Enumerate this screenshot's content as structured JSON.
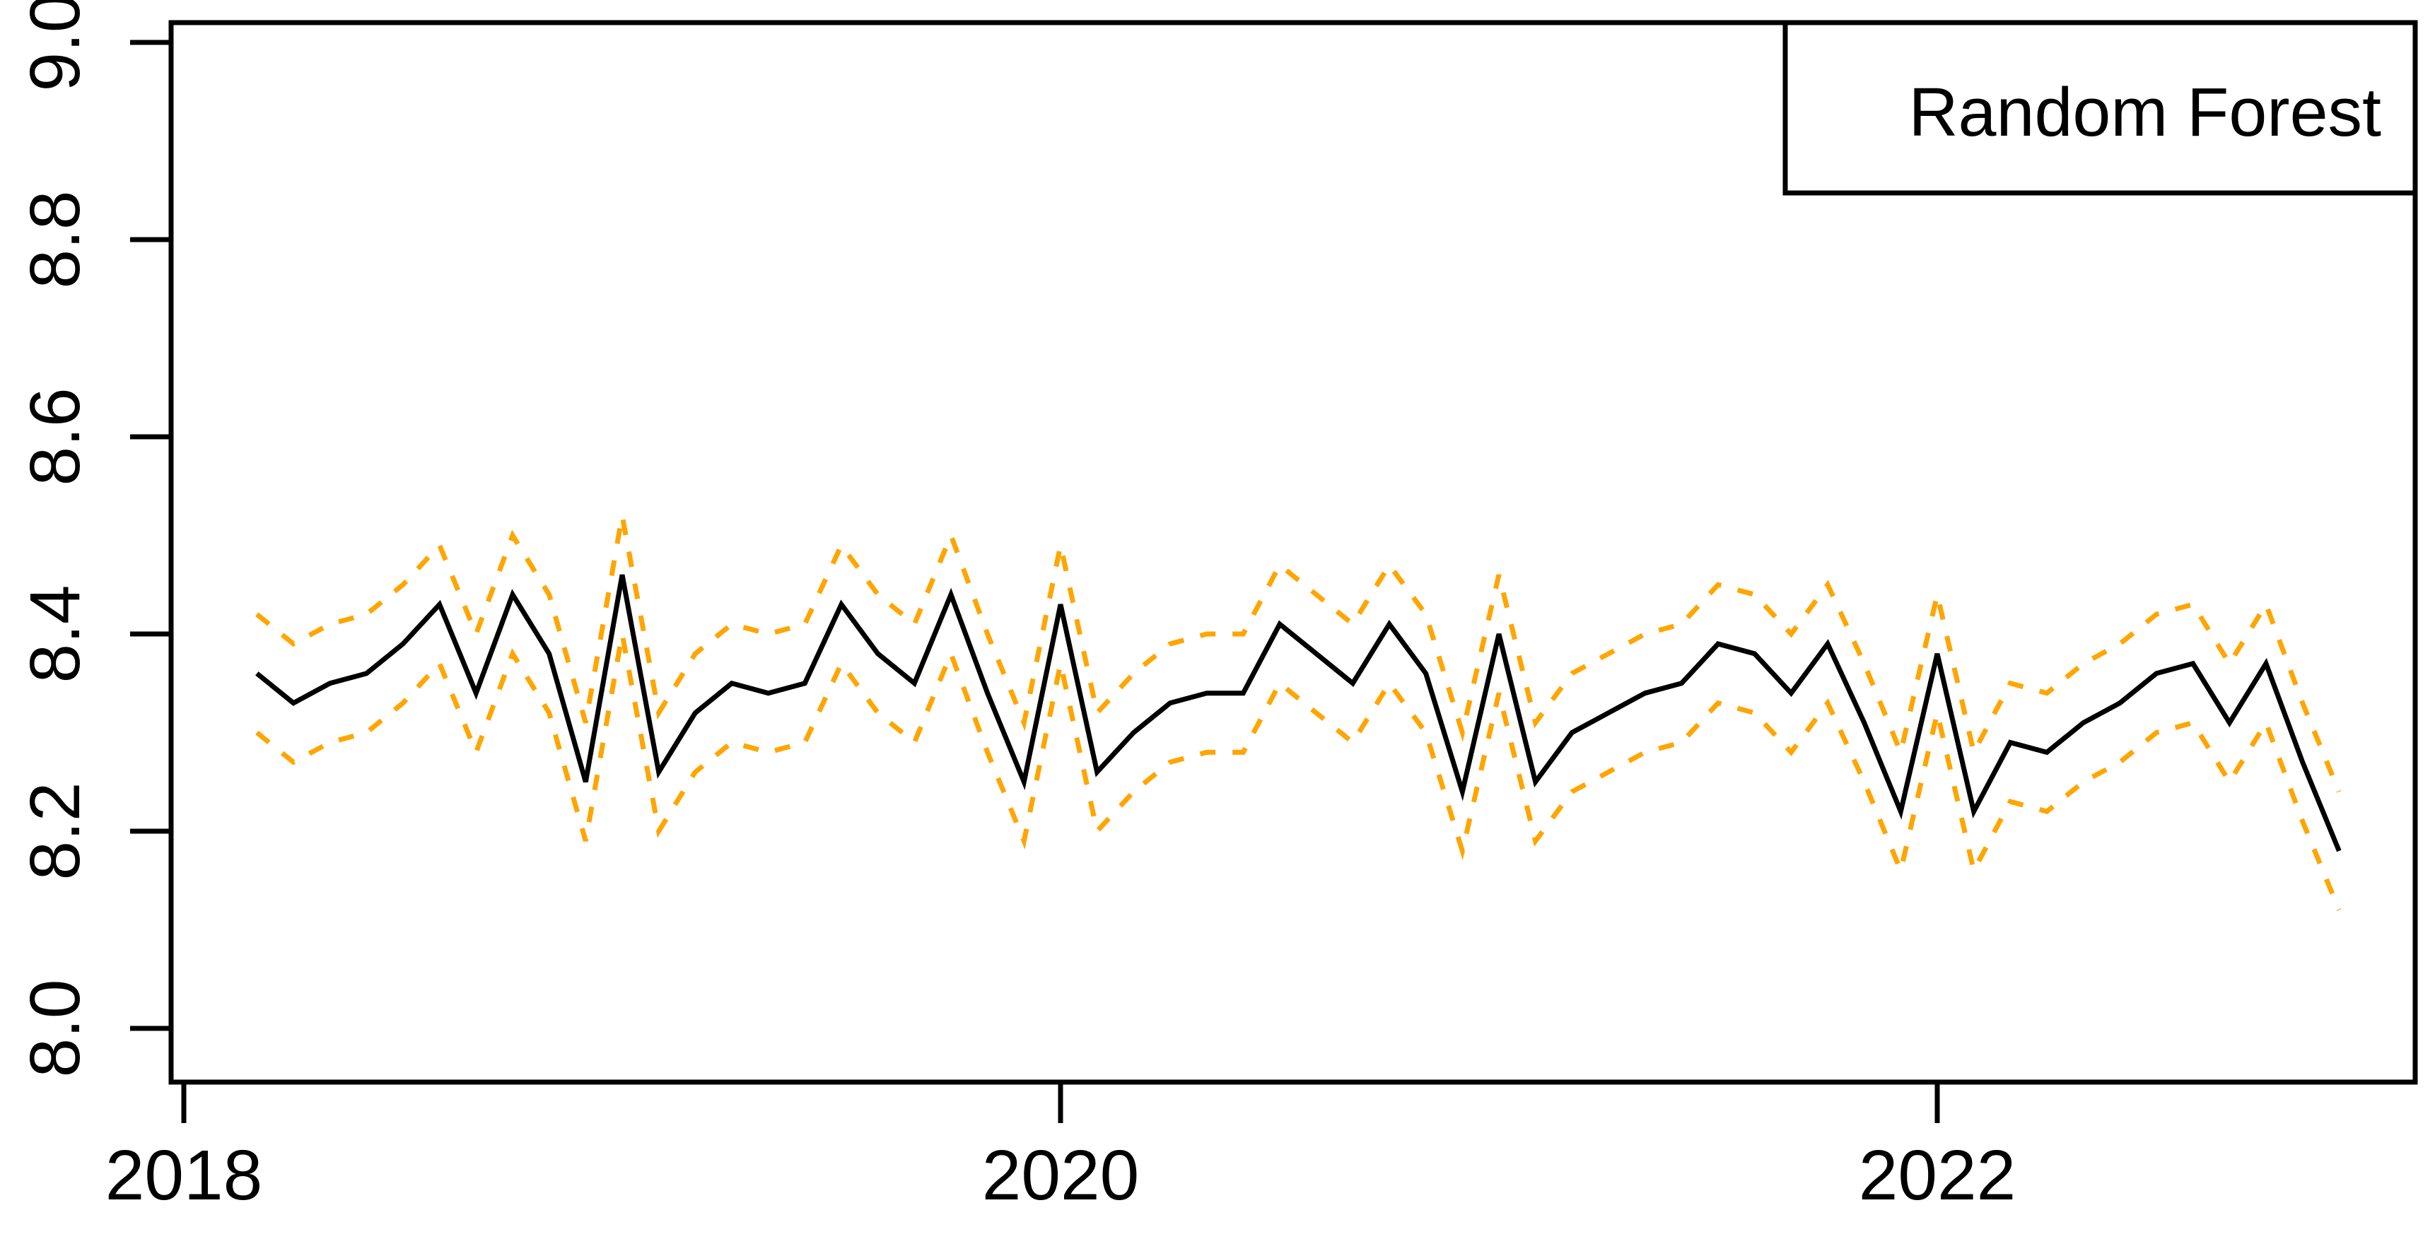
{
  "page": {
    "background": "#ffffff"
  },
  "chart_data": {
    "type": "line",
    "title": "",
    "xlabel": "",
    "ylabel": "",
    "grid": false,
    "legend": {
      "label": "Random Forest",
      "position": "topright"
    },
    "x_axis": {
      "tick_values": [
        2018,
        2020,
        2022
      ],
      "tick_labels": [
        "2018",
        "2020",
        "2022"
      ]
    },
    "y_axis": {
      "tick_values": [
        8.0,
        8.2,
        8.4,
        8.6,
        8.8,
        9.0
      ],
      "tick_labels": [
        "8.0",
        "8.2",
        "8.4",
        "8.6",
        "8.8",
        "9.0"
      ],
      "range_shown": [
        7.95,
        9.02
      ]
    },
    "colors": {
      "prediction_line": "#000000",
      "confidence_band": "#FFA500",
      "axis": "#000000",
      "background": "#ffffff"
    },
    "series": [
      {
        "name": "prediction",
        "style": "solid",
        "color": "#000000"
      },
      {
        "name": "upper-confidence-band",
        "style": "dashed",
        "color": "#FFA500",
        "offset_from_prediction": 0.06
      },
      {
        "name": "lower-confidence-band",
        "style": "dashed",
        "color": "#FFA500",
        "offset_from_prediction": -0.06
      }
    ],
    "band_offset": 0.06,
    "dates": [
      "2018-03",
      "2018-04",
      "2018-05",
      "2018-06",
      "2018-07",
      "2018-08",
      "2018-09",
      "2018-10",
      "2018-11",
      "2018-12",
      "2019-01",
      "2019-02",
      "2019-03",
      "2019-04",
      "2019-05",
      "2019-06",
      "2019-07",
      "2019-08",
      "2019-09",
      "2019-10",
      "2019-11",
      "2019-12",
      "2020-01",
      "2020-02",
      "2020-03",
      "2020-04",
      "2020-05",
      "2020-06",
      "2020-07",
      "2020-08",
      "2020-09",
      "2020-10",
      "2020-11",
      "2020-12",
      "2021-01",
      "2021-02",
      "2021-03",
      "2021-04",
      "2021-05",
      "2021-06",
      "2021-07",
      "2021-08",
      "2021-09",
      "2021-10",
      "2021-11",
      "2021-12",
      "2022-01",
      "2022-02",
      "2022-03",
      "2022-04",
      "2022-05",
      "2022-06",
      "2022-07",
      "2022-08",
      "2022-09",
      "2022-10",
      "2022-11",
      "2022-12"
    ],
    "values": [
      8.36,
      8.33,
      8.35,
      8.36,
      8.39,
      8.43,
      8.34,
      8.44,
      8.38,
      8.25,
      8.46,
      8.26,
      8.32,
      8.35,
      8.34,
      8.35,
      8.43,
      8.38,
      8.35,
      8.44,
      8.34,
      8.25,
      8.43,
      8.26,
      8.3,
      8.33,
      8.34,
      8.34,
      8.41,
      8.38,
      8.35,
      8.41,
      8.36,
      8.24,
      8.4,
      8.25,
      8.3,
      8.32,
      8.34,
      8.35,
      8.39,
      8.38,
      8.34,
      8.39,
      8.31,
      8.22,
      8.38,
      8.22,
      8.29,
      8.28,
      8.31,
      8.33,
      8.36,
      8.37,
      8.31,
      8.37,
      8.27,
      8.18
    ]
  }
}
